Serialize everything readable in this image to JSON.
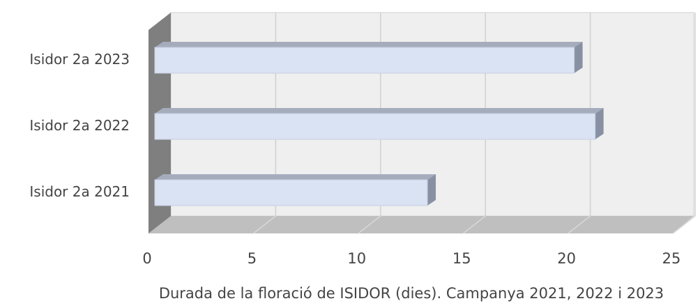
{
  "chart_data": {
    "type": "bar",
    "orientation": "horizontal",
    "three_d": true,
    "xlabel": "Durada de la floració de ISIDOR (dies). Campanya 2021, 2022 i 2023",
    "categories": [
      "Isidor 2a 2021",
      "Isidor 2a 2022",
      "Isidor 2a 2023"
    ],
    "values": [
      13,
      21,
      20
    ],
    "color": "#dae3f3",
    "xlim": [
      0,
      25
    ],
    "xticks": [
      0,
      5,
      10,
      15,
      20,
      25
    ],
    "grid": true
  }
}
